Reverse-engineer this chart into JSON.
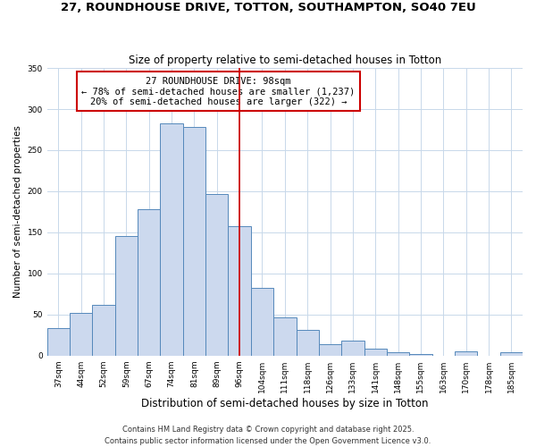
{
  "title_line1": "27, ROUNDHOUSE DRIVE, TOTTON, SOUTHAMPTON, SO40 7EU",
  "title_line2": "Size of property relative to semi-detached houses in Totton",
  "xlabel": "Distribution of semi-detached houses by size in Totton",
  "ylabel": "Number of semi-detached properties",
  "categories": [
    "37sqm",
    "44sqm",
    "52sqm",
    "59sqm",
    "67sqm",
    "74sqm",
    "81sqm",
    "89sqm",
    "96sqm",
    "104sqm",
    "111sqm",
    "118sqm",
    "126sqm",
    "133sqm",
    "141sqm",
    "148sqm",
    "155sqm",
    "163sqm",
    "170sqm",
    "178sqm",
    "185sqm"
  ],
  "bar_values": [
    33,
    52,
    62,
    145,
    178,
    283,
    278,
    197,
    158,
    82,
    46,
    31,
    14,
    18,
    8,
    4,
    2,
    0,
    5,
    0,
    4
  ],
  "bar_color_fill": "#ccd9ee",
  "bar_color_edge": "#5588bb",
  "vline_x_index": 8,
  "vline_color": "#cc0000",
  "annotation_title": "27 ROUNDHOUSE DRIVE: 98sqm",
  "annotation_line1": "← 78% of semi-detached houses are smaller (1,237)",
  "annotation_line2": "20% of semi-detached houses are larger (322) →",
  "annotation_box_color": "#cc0000",
  "ylim": [
    0,
    350
  ],
  "yticks": [
    0,
    50,
    100,
    150,
    200,
    250,
    300,
    350
  ],
  "footnote1": "Contains HM Land Registry data © Crown copyright and database right 2025.",
  "footnote2": "Contains public sector information licensed under the Open Government Licence v3.0.",
  "background_color": "#ffffff",
  "grid_color": "#c8d8ea",
  "title1_fontsize": 9.5,
  "title2_fontsize": 8.5,
  "xlabel_fontsize": 8.5,
  "ylabel_fontsize": 7.5,
  "tick_fontsize": 6.5,
  "annotation_fontsize": 7.5,
  "footnote_fontsize": 6
}
